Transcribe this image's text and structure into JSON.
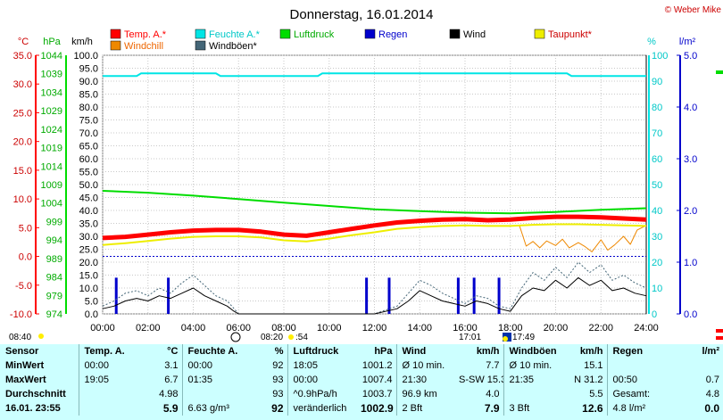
{
  "title": "Donnerstag, 16.01.2014",
  "copyright": "© Weber Mike",
  "axes": {
    "temp_unit": "°C",
    "pressure_unit": "hPa",
    "wind_unit": "km/h",
    "humidity_unit": "%",
    "rain_unit": "l/m²"
  },
  "legend": [
    {
      "label": "Temp. A.*",
      "color": "#ff0000"
    },
    {
      "label": "Feuchte A.*",
      "color": "#00e5e5"
    },
    {
      "label": "Luftdruck",
      "color": "#00dd00"
    },
    {
      "label": "Regen",
      "color": "#0000cc"
    },
    {
      "label": "Wind",
      "color": "#000000"
    },
    {
      "label": "Taupunkt*",
      "color": "#eeee00"
    },
    {
      "label": "Windchill",
      "color": "#ee8800"
    },
    {
      "label": "Windböen*",
      "color": "#446677"
    }
  ],
  "sun_marks": {
    "sunrise": "08:40",
    "transit_a": "08:20",
    "transit_b": ":54",
    "moon": "17:01",
    "sunset": "17:49"
  },
  "chart_data": {
    "type": "line",
    "x_ticks": [
      "00:00",
      "02:00",
      "04:00",
      "06:00",
      "08:00",
      "10:00",
      "12:00",
      "14:00",
      "16:00",
      "18:00",
      "20:00",
      "22:00",
      "24:00"
    ],
    "xlim": [
      0,
      24
    ],
    "ylim_temp": [
      -10,
      35
    ],
    "ylim_pressure": [
      974,
      1044
    ],
    "ylim_wind": [
      0,
      100
    ],
    "ylim_humidity": [
      0,
      100
    ],
    "ylim_rain": [
      0,
      5
    ],
    "temp_ticks": [
      "35.0",
      "30.0",
      "25.0",
      "20.0",
      "15.0",
      "10.0",
      "5.0",
      "0.0",
      "-5.0",
      "-10.0"
    ],
    "pressure_ticks": [
      "1044",
      "1039",
      "1034",
      "1029",
      "1024",
      "1019",
      "1014",
      "1009",
      "1004",
      "999",
      "994",
      "989",
      "984",
      "979",
      "974"
    ],
    "wind_ticks": [
      "100.0",
      "95.0",
      "90.0",
      "85.0",
      "80.0",
      "75.0",
      "70.0",
      "65.0",
      "60.0",
      "55.0",
      "50.0",
      "45.0",
      "40.0",
      "35.0",
      "30.0",
      "25.0",
      "20.0",
      "15.0",
      "10.0",
      "5.0",
      "0.0"
    ],
    "humidity_ticks": [
      "100",
      "90",
      "80",
      "70",
      "60",
      "50",
      "40",
      "30",
      "20",
      "10",
      "0"
    ],
    "rain_ticks": [
      "5.0",
      "4.0",
      "3.0",
      "2.0",
      "1.0",
      "0.0"
    ],
    "series": [
      {
        "name": "Temp. A.*",
        "axis": "temp",
        "color": "#ff0000",
        "width": 5,
        "x": [
          0,
          1,
          2,
          3,
          4,
          5,
          6,
          7,
          8,
          9,
          10,
          11,
          12,
          13,
          14,
          15,
          16,
          17,
          18,
          19,
          20,
          21,
          22,
          23,
          24
        ],
        "y": [
          3.2,
          3.4,
          3.8,
          4.2,
          4.5,
          4.6,
          4.6,
          4.3,
          3.8,
          3.6,
          4.2,
          4.8,
          5.4,
          5.9,
          6.2,
          6.4,
          6.5,
          6.3,
          6.4,
          6.7,
          6.9,
          6.9,
          6.8,
          6.6,
          6.4
        ]
      },
      {
        "name": "Taupunkt*",
        "axis": "temp",
        "color": "#eeee00",
        "width": 2,
        "x": [
          0,
          1,
          2,
          3,
          4,
          5,
          6,
          7,
          8,
          9,
          10,
          11,
          12,
          13,
          14,
          15,
          16,
          17,
          18,
          19,
          20,
          21,
          22,
          23,
          24
        ],
        "y": [
          2.0,
          2.3,
          2.7,
          3.1,
          3.4,
          3.5,
          3.5,
          3.3,
          2.8,
          2.6,
          3.1,
          3.7,
          4.2,
          4.8,
          5.1,
          5.3,
          5.4,
          5.3,
          5.3,
          5.5,
          5.6,
          5.6,
          5.5,
          5.4,
          5.3
        ]
      },
      {
        "name": "Feuchte A.*",
        "axis": "humidity",
        "color": "#00e5e5",
        "width": 2,
        "x": [
          0,
          1.5,
          1.7,
          5,
          5.2,
          9.5,
          9.7,
          17,
          17.2,
          20.5,
          20.7,
          24
        ],
        "y": [
          92,
          92,
          93,
          93,
          92,
          92,
          93,
          93,
          93,
          93,
          92,
          92
        ]
      },
      {
        "name": "Luftdruck",
        "axis": "pressure",
        "color": "#00dd00",
        "width": 2,
        "x": [
          0,
          2,
          4,
          6,
          8,
          10,
          12,
          14,
          16,
          18,
          20,
          22,
          24
        ],
        "y": [
          1007.3,
          1006.8,
          1006.0,
          1005.1,
          1004.1,
          1003.2,
          1002.3,
          1001.8,
          1001.4,
          1001.2,
          1001.6,
          1002.2,
          1002.6
        ]
      },
      {
        "name": "Windchill",
        "axis": "temp",
        "color": "#ee8800",
        "width": 1,
        "x": [
          18.4,
          18.7,
          19,
          19.3,
          19.6,
          20,
          20.3,
          20.6,
          21,
          21.3,
          21.6,
          22,
          22.3,
          22.6,
          23,
          23.3,
          23.6,
          24
        ],
        "y": [
          5.4,
          1.8,
          2.6,
          1.5,
          2.7,
          1.9,
          3.0,
          1.5,
          2.4,
          1.7,
          0.8,
          2.9,
          1.1,
          2.0,
          3.5,
          2.1,
          4.6,
          5.4
        ]
      },
      {
        "name": "Windböen*",
        "axis": "wind",
        "color": "#446677",
        "width": 1,
        "dash": true,
        "x": [
          0,
          0.5,
          1,
          1.5,
          2,
          2.5,
          3,
          3.5,
          4,
          4.5,
          5,
          5.5,
          5.8,
          6,
          7,
          8,
          9,
          10,
          11,
          12,
          13,
          13.5,
          14,
          14.5,
          15,
          16,
          16.5,
          17,
          17.5,
          18,
          18.5,
          19,
          19.5,
          20,
          20.5,
          21,
          21.5,
          22,
          22.5,
          23,
          23.5,
          24
        ],
        "y": [
          3,
          5,
          8,
          9,
          7,
          10,
          8,
          12,
          15,
          11,
          7,
          5,
          2,
          0,
          0,
          0,
          0,
          0,
          0,
          0,
          3,
          8,
          13,
          11,
          8,
          4,
          7,
          6,
          3,
          2,
          10,
          16,
          13,
          18,
          14,
          20,
          16,
          19,
          13,
          15,
          12,
          10
        ]
      },
      {
        "name": "Wind",
        "axis": "wind",
        "color": "#000000",
        "width": 1,
        "x": [
          0,
          0.5,
          1,
          1.5,
          2,
          2.5,
          3,
          3.5,
          4,
          4.5,
          5,
          5.5,
          5.8,
          6,
          7,
          8,
          9,
          10,
          11,
          12,
          13,
          13.5,
          14,
          14.5,
          15,
          16,
          16.5,
          17,
          17.5,
          18,
          18.5,
          19,
          19.5,
          20,
          20.5,
          21,
          21.5,
          22,
          22.5,
          23,
          23.5,
          24
        ],
        "y": [
          2,
          3,
          5,
          6,
          5,
          7,
          6,
          8,
          10,
          7,
          5,
          3,
          1,
          0,
          0,
          0,
          0,
          0,
          0,
          0,
          2,
          5,
          9,
          7,
          5,
          3,
          5,
          4,
          2,
          1,
          7,
          10,
          9,
          13,
          10,
          14,
          11,
          13,
          9,
          10,
          8,
          7
        ]
      }
    ],
    "rain_bars": [
      {
        "x": 0.6,
        "value": 0.7
      },
      {
        "x": 2.9,
        "value": 0.7
      },
      {
        "x": 11.65,
        "value": 0.7
      },
      {
        "x": 12.65,
        "value": 0.7
      },
      {
        "x": 15.7,
        "value": 0.7
      },
      {
        "x": 16.4,
        "value": 0.7
      },
      {
        "x": 17.5,
        "value": 0.7
      }
    ],
    "reference_line": {
      "axis": "temp",
      "value": 0,
      "color": "#0000cc"
    }
  },
  "stats": {
    "headers": [
      "Sensor",
      "Temp. A.",
      "°C",
      "Feuchte A.",
      "%",
      "Luftdruck",
      "hPa",
      "Wind",
      "km/h",
      "Windböen",
      "km/h",
      "Regen",
      "l/m²"
    ],
    "rows": [
      [
        "MinWert",
        "00:00",
        "3.1",
        "00:00",
        "92",
        "18:05",
        "1001.2",
        "Ø 10 min.",
        "7.7",
        "Ø 10 min.",
        "15.1",
        "",
        ""
      ],
      [
        "MaxWert",
        "19:05",
        "6.7",
        "01:35",
        "93",
        "00:00",
        "1007.4",
        "21:30",
        "S-SW 15.3",
        "21:35",
        "N 31.2",
        "00:50",
        "0.7"
      ],
      [
        "Durchschnitt",
        "",
        "4.98",
        "",
        "93",
        "^0.9hPa/h",
        "1003.7",
        "96.9 km",
        "4.0",
        "",
        "5.5",
        "Gesamt:",
        "4.8"
      ],
      [
        "16.01. 23:55",
        "",
        "5.9",
        "6.63 g/m³",
        "92",
        "veränderlich",
        "1002.9",
        "2 Bft",
        "7.9",
        "3 Bft",
        "12.6",
        "4.8 l/m²",
        "0.0"
      ]
    ]
  }
}
